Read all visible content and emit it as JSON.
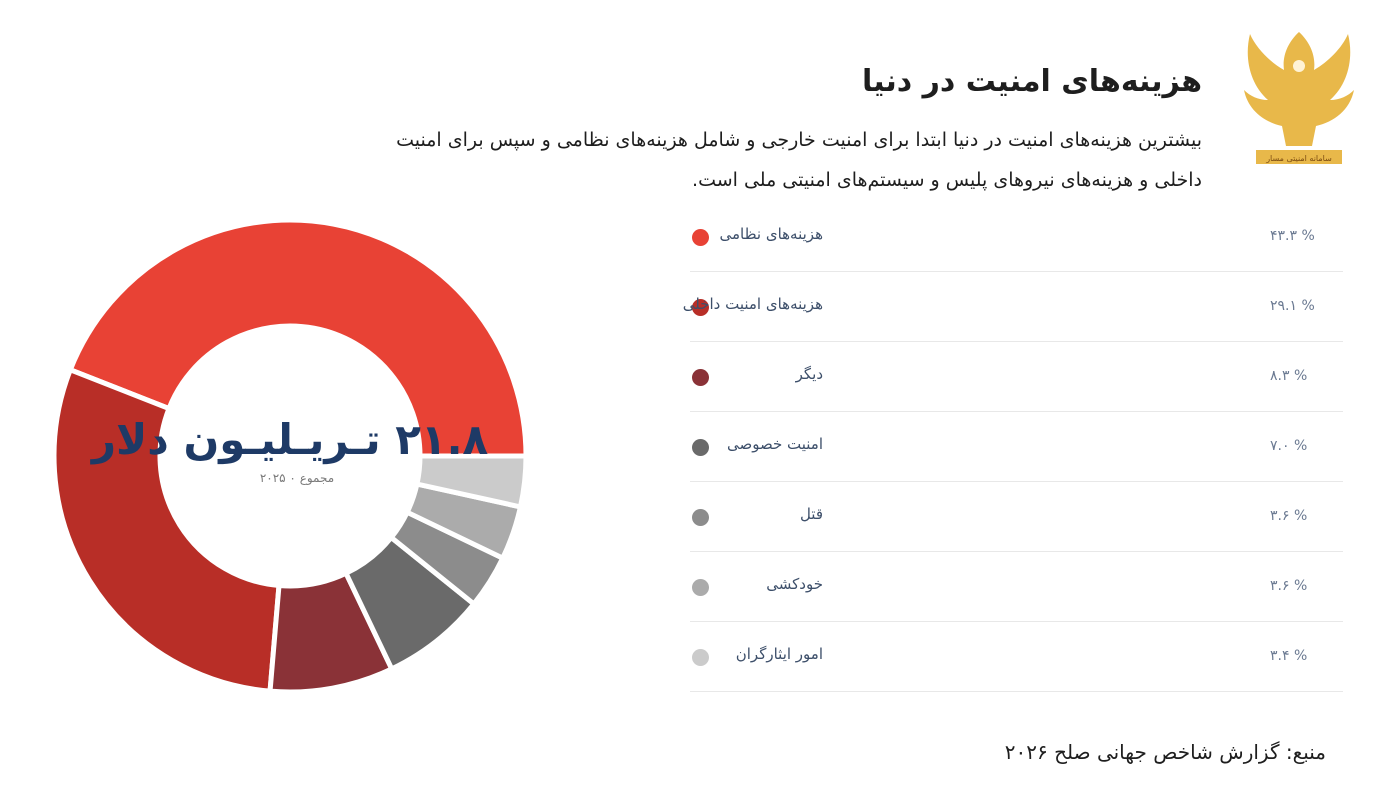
{
  "header": {
    "title": "هزینه‌های امنیت در دنیا",
    "subtitle": "بیشترین هزینه‌های امنیت در دنیا ابتدا برای امنیت خارجی و شامل هزینه‌های نظامی و سپس برای امنیت داخلی و هزینه‌های نیروهای پلیس و سیستم‌های امنیتی ملی است."
  },
  "logo": {
    "icon": "eagle-logo",
    "text": "سامانه امنیتی مسار",
    "color": "#e8b84a"
  },
  "chart_data": {
    "type": "pie",
    "donut": true,
    "center_value": "۲۱.۸ تـریـلیـون دلار",
    "center_caption": "مجموع ۰ ۲۰۲۵",
    "categories": [
      "هزینه‌های نظامی",
      "هزینه‌های امنیت داخلی",
      "دیگر",
      "امنیت خصوصی",
      "قتل",
      "خودکشی",
      "امور ایثارگران"
    ],
    "values": [
      43.3,
      29.1,
      8.3,
      7.0,
      3.6,
      3.6,
      3.4
    ],
    "display_values": [
      "% ۴۳.۳",
      "% ۲۹.۱",
      "% ۸.۳",
      "% ۷.۰",
      "% ۳.۶",
      "% ۳.۶",
      "% ۳.۴"
    ],
    "colors": [
      "#e84235",
      "#b82e27",
      "#8a3237",
      "#6a6a6a",
      "#8c8c8c",
      "#ababab",
      "#cbcbcb"
    ],
    "legend_position": "right"
  },
  "source": "منبع: گزارش شاخص جهانی صلح ۲۰۲۶"
}
